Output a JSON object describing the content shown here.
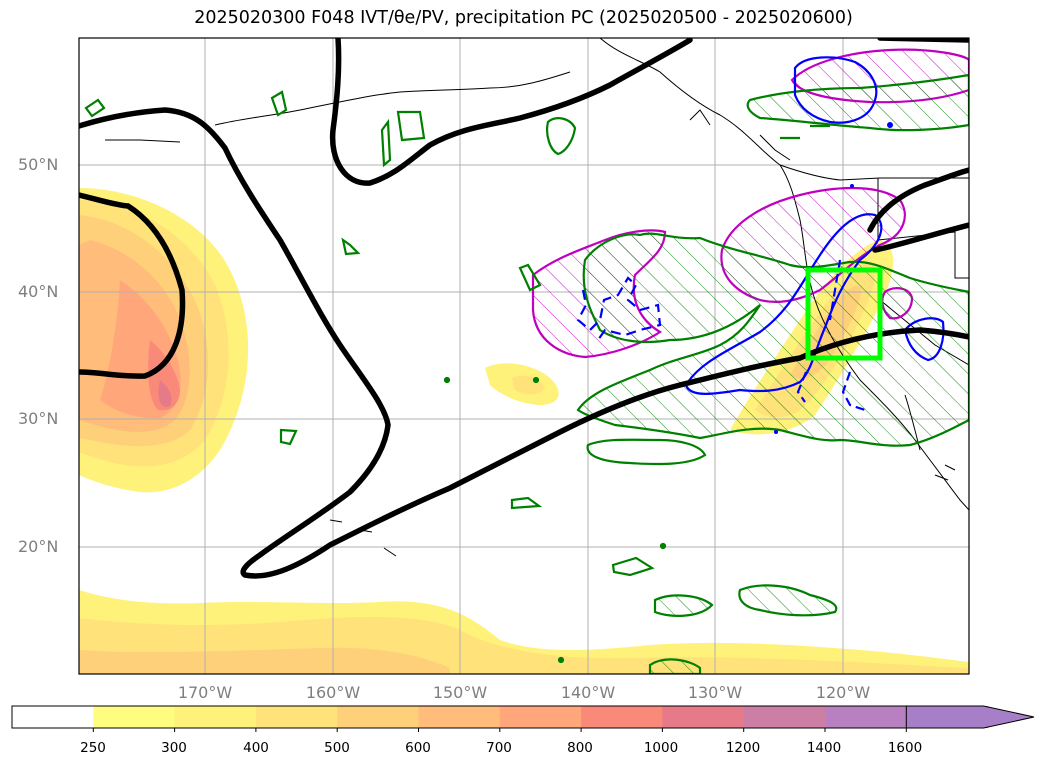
{
  "title": "2025020300 F048 IVT/θe/PV, precipitation PC (2025020500 - 2025020600)",
  "lat_labels": [
    "50°N",
    "40°N",
    "30°N",
    "20°N"
  ],
  "lon_labels": [
    "170°W",
    "160°W",
    "150°W",
    "140°W",
    "130°W",
    "120°W"
  ],
  "colorbar": {
    "ticks": [
      "250",
      "300",
      "400",
      "500",
      "600",
      "700",
      "800",
      "1000",
      "1200",
      "1400",
      "1600"
    ],
    "colors": [
      "#ffffff",
      "#fffd80",
      "#fff27a",
      "#ffe27a",
      "#ffd07a",
      "#ffbc7a",
      "#ffa77a",
      "#f98a7a",
      "#e77a89",
      "#cc7ea5",
      "#b880c0",
      "#a77fc8"
    ],
    "extend": "max"
  },
  "colors": {
    "theta_e": "#008000",
    "pv_positive": "#0000ff",
    "pv_negative": "#0000ff",
    "precip_pc": "#c000c0",
    "jet_axis": "#000000",
    "target_box": "#00ff00"
  }
}
